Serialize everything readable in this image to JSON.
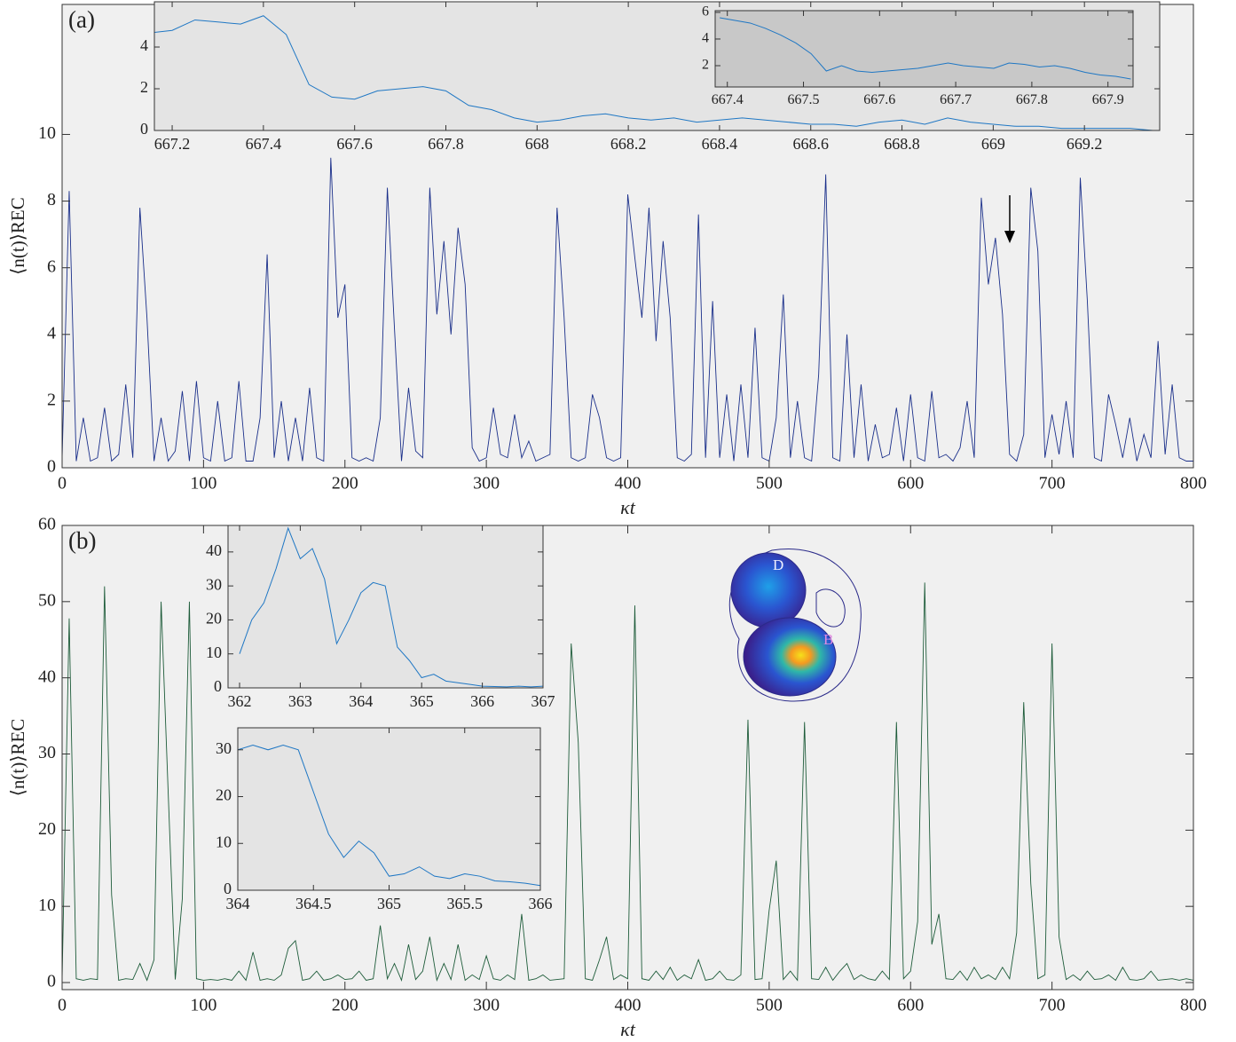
{
  "chart_data": [
    {
      "type": "line",
      "title": "(a)",
      "xlabel": "κt",
      "ylabel": "⟨n(t)⟩REC",
      "background": "#f0f0f0",
      "x": [
        0,
        5,
        10,
        15,
        20,
        25,
        30,
        35,
        40,
        45,
        50,
        55,
        60,
        65,
        70,
        75,
        80,
        85,
        90,
        95,
        100,
        105,
        110,
        115,
        120,
        125,
        130,
        135,
        140,
        145,
        150,
        155,
        160,
        165,
        170,
        175,
        180,
        185,
        190,
        195,
        200,
        205,
        210,
        215,
        220,
        225,
        230,
        235,
        240,
        245,
        250,
        255,
        260,
        265,
        270,
        275,
        280,
        285,
        290,
        295,
        300,
        305,
        310,
        315,
        320,
        325,
        330,
        335,
        340,
        345,
        350,
        355,
        360,
        365,
        370,
        375,
        380,
        385,
        390,
        395,
        400,
        405,
        410,
        415,
        420,
        425,
        430,
        435,
        440,
        445,
        450,
        455,
        460,
        465,
        470,
        475,
        480,
        485,
        490,
        495,
        500,
        505,
        510,
        515,
        520,
        525,
        530,
        535,
        540,
        545,
        550,
        555,
        560,
        565,
        570,
        575,
        580,
        585,
        590,
        595,
        600,
        605,
        610,
        615,
        620,
        625,
        630,
        635,
        640,
        645,
        650,
        655,
        660,
        665,
        670,
        675,
        680,
        685,
        690,
        695,
        700,
        705,
        710,
        715,
        720,
        725,
        730,
        735,
        740,
        745,
        750,
        755,
        760,
        765,
        770,
        775,
        780,
        785,
        790,
        795,
        800
      ],
      "series": [
        {
          "color": "#1a2f8a",
          "values": [
            0.3,
            8.3,
            0.2,
            1.5,
            0.2,
            0.3,
            1.8,
            0.2,
            0.4,
            2.5,
            0.3,
            7.8,
            4.5,
            0.2,
            1.5,
            0.2,
            0.5,
            2.3,
            0.2,
            2.6,
            0.3,
            0.2,
            2.0,
            0.2,
            0.3,
            2.6,
            0.2,
            0.2,
            1.5,
            6.4,
            0.3,
            2.0,
            0.2,
            1.5,
            0.2,
            2.4,
            0.3,
            0.2,
            9.3,
            4.5,
            5.5,
            0.3,
            0.2,
            0.3,
            0.2,
            1.5,
            8.4,
            4.2,
            0.2,
            2.4,
            0.5,
            0.3,
            8.4,
            4.6,
            6.8,
            4.0,
            7.2,
            5.5,
            0.6,
            0.2,
            0.3,
            1.8,
            0.4,
            0.3,
            1.6,
            0.3,
            0.8,
            0.2,
            0.3,
            0.4,
            7.8,
            4.5,
            0.3,
            0.2,
            0.3,
            2.2,
            1.5,
            0.3,
            0.2,
            0.3,
            8.2,
            6.3,
            4.5,
            7.8,
            3.8,
            6.8,
            4.5,
            0.3,
            0.2,
            0.4,
            7.6,
            0.3,
            5.0,
            0.3,
            2.2,
            0.2,
            2.5,
            0.3,
            4.2,
            0.3,
            0.2,
            1.5,
            5.2,
            0.3,
            2.0,
            0.3,
            0.2,
            2.8,
            8.8,
            0.3,
            0.2,
            4.0,
            0.3,
            2.5,
            0.2,
            1.3,
            0.3,
            0.4,
            1.8,
            0.2,
            2.2,
            0.3,
            0.2,
            2.3,
            0.3,
            0.4,
            0.2,
            0.6,
            2.0,
            0.3,
            8.1,
            5.5,
            6.9,
            4.6,
            0.4,
            0.2,
            1.0,
            8.4,
            6.5,
            0.3,
            1.6,
            0.4,
            2.0,
            0.3,
            8.7,
            5.0,
            0.3,
            0.2,
            2.2,
            1.3,
            0.3,
            1.5,
            0.2,
            1.0,
            0.3,
            3.8,
            0.4,
            2.5,
            0.3,
            0.2,
            0.2
          ]
        }
      ],
      "xlim": [
        0,
        800
      ],
      "xticks": [
        0,
        100,
        200,
        300,
        400,
        500,
        600,
        700,
        800
      ],
      "ylim": [
        0,
        13.9
      ],
      "yticks": [
        0,
        2,
        4,
        6,
        8,
        10
      ]
    },
    {
      "type": "line",
      "background": "#e4e4e4",
      "x": [
        667.16,
        667.2,
        667.25,
        667.3,
        667.35,
        667.4,
        667.45,
        667.5,
        667.55,
        667.6,
        667.65,
        667.7,
        667.75,
        667.8,
        667.85,
        667.9,
        667.95,
        668,
        668.05,
        668.1,
        668.15,
        668.2,
        668.25,
        668.3,
        668.35,
        668.4,
        668.45,
        668.5,
        668.55,
        668.6,
        668.65,
        668.7,
        668.75,
        668.8,
        668.85,
        668.9,
        668.95,
        669,
        669.05,
        669.1,
        669.15,
        669.2,
        669.25,
        669.3,
        669.35
      ],
      "series": [
        {
          "color": "#1f77c4",
          "values": [
            4.7,
            4.8,
            5.3,
            5.2,
            5.1,
            5.5,
            4.6,
            2.2,
            1.6,
            1.5,
            1.9,
            2.0,
            2.1,
            1.9,
            1.2,
            1.0,
            0.6,
            0.4,
            0.5,
            0.7,
            0.8,
            0.6,
            0.5,
            0.6,
            0.4,
            0.5,
            0.6,
            0.5,
            0.4,
            0.3,
            0.3,
            0.2,
            0.4,
            0.5,
            0.3,
            0.6,
            0.4,
            0.3,
            0.2,
            0.2,
            0.1,
            0.1,
            0.1,
            0.1,
            0.0
          ]
        }
      ],
      "xlim": [
        667.161,
        669.365
      ],
      "xticks": [
        667.2,
        667.4,
        667.6,
        667.8,
        668,
        668.2,
        668.4,
        668.6,
        668.8,
        669,
        669.2
      ],
      "ylim": [
        0,
        6.17
      ],
      "yticks": [
        0,
        2,
        4
      ]
    },
    {
      "type": "line",
      "background": "#c8c8c8",
      "x": [
        667.39,
        667.41,
        667.43,
        667.45,
        667.47,
        667.49,
        667.51,
        667.53,
        667.55,
        667.57,
        667.59,
        667.61,
        667.63,
        667.65,
        667.67,
        667.69,
        667.71,
        667.73,
        667.75,
        667.77,
        667.79,
        667.81,
        667.83,
        667.85,
        667.87,
        667.89,
        667.91,
        667.93
      ],
      "series": [
        {
          "color": "#1f77c4",
          "values": [
            5.6,
            5.4,
            5.2,
            4.8,
            4.3,
            3.7,
            2.9,
            1.6,
            2.0,
            1.6,
            1.5,
            1.6,
            1.7,
            1.8,
            2.0,
            2.2,
            2.0,
            1.9,
            1.8,
            2.2,
            2.1,
            1.9,
            2.0,
            1.8,
            1.5,
            1.3,
            1.2,
            1.0
          ]
        }
      ],
      "xlim": [
        667.384,
        667.933
      ],
      "xticks": [
        667.4,
        667.5,
        667.6,
        667.7,
        667.8,
        667.9
      ],
      "ylim": [
        0.4,
        6.13
      ],
      "yticks": [
        2,
        4,
        6
      ]
    },
    {
      "type": "line",
      "title": "(b)",
      "xlabel": "κt",
      "ylabel": "⟨n(t)⟩REC",
      "background": "#f0f0f0",
      "x": [
        0,
        5,
        10,
        15,
        20,
        25,
        30,
        35,
        40,
        45,
        50,
        55,
        60,
        65,
        70,
        75,
        80,
        85,
        90,
        95,
        100,
        105,
        110,
        115,
        120,
        125,
        130,
        135,
        140,
        145,
        150,
        155,
        160,
        165,
        170,
        175,
        180,
        185,
        190,
        195,
        200,
        205,
        210,
        215,
        220,
        225,
        230,
        235,
        240,
        245,
        250,
        255,
        260,
        265,
        270,
        275,
        280,
        285,
        290,
        295,
        300,
        305,
        310,
        315,
        320,
        325,
        330,
        335,
        340,
        345,
        350,
        355,
        360,
        365,
        370,
        375,
        380,
        385,
        390,
        395,
        400,
        405,
        410,
        415,
        420,
        425,
        430,
        435,
        440,
        445,
        450,
        455,
        460,
        465,
        470,
        475,
        480,
        485,
        490,
        495,
        500,
        505,
        510,
        515,
        520,
        525,
        530,
        535,
        540,
        545,
        550,
        555,
        560,
        565,
        570,
        575,
        580,
        585,
        590,
        595,
        600,
        605,
        610,
        615,
        620,
        625,
        630,
        635,
        640,
        645,
        650,
        655,
        660,
        665,
        670,
        675,
        680,
        685,
        690,
        695,
        700,
        705,
        710,
        715,
        720,
        725,
        730,
        735,
        740,
        745,
        750,
        755,
        760,
        765,
        770,
        775,
        780,
        785,
        790,
        795,
        800
      ],
      "series": [
        {
          "color": "#1e5c3a",
          "values": [
            0.5,
            47.8,
            0.5,
            0.3,
            0.5,
            0.4,
            52,
            11.5,
            0.3,
            0.5,
            0.4,
            2.5,
            0.3,
            3,
            50,
            25,
            0.4,
            11,
            50,
            0.5,
            0.3,
            0.4,
            0.3,
            0.5,
            0.3,
            1.5,
            0.3,
            4,
            0.3,
            0.5,
            0.3,
            1,
            4.5,
            5.5,
            0.3,
            0.5,
            1.5,
            0.3,
            0.5,
            1,
            0.4,
            0.5,
            1.5,
            0.3,
            0.5,
            7.5,
            0.5,
            2.5,
            0.3,
            5,
            0.4,
            1.5,
            6,
            0.3,
            2.5,
            0.4,
            5,
            0.3,
            1,
            0.4,
            3.5,
            0.5,
            0.3,
            1,
            0.4,
            9,
            0.3,
            0.5,
            1,
            0.3,
            0.4,
            0.5,
            44.5,
            31.5,
            0.5,
            0.3,
            3,
            6,
            0.4,
            1,
            0.5,
            49.5,
            0.5,
            0.3,
            1.5,
            0.4,
            2,
            0.3,
            1,
            0.5,
            3,
            0.3,
            0.5,
            1.5,
            0.4,
            0.3,
            1,
            34.5,
            0.4,
            0.5,
            9.5,
            16,
            0.4,
            1.5,
            0.3,
            34.2,
            0.5,
            0.4,
            2,
            0.3,
            1.5,
            2.5,
            0.4,
            1,
            0.5,
            0.3,
            1.5,
            0.4,
            34.2,
            0.5,
            1.5,
            8,
            52.5,
            5,
            9,
            0.5,
            0.4,
            1.5,
            0.3,
            2,
            0.5,
            1,
            0.4,
            2,
            0.5,
            6.5,
            36.8,
            13,
            0.5,
            1,
            44.5,
            6,
            0.4,
            1,
            0.3,
            1.5,
            0.4,
            0.5,
            1,
            0.3,
            2,
            0.4,
            0.3,
            0.5,
            1.5,
            0.3,
            0.4,
            0.5,
            0.3,
            0.5,
            0.3
          ]
        }
      ],
      "xlim": [
        0,
        800
      ],
      "xticks": [
        0,
        100,
        200,
        300,
        400,
        500,
        600,
        700,
        800
      ],
      "ylim": [
        -0.93,
        60
      ],
      "yticks": [
        0,
        10,
        20,
        30,
        40,
        50,
        60
      ]
    },
    {
      "type": "line",
      "background": "#e4e4e4",
      "x": [
        362,
        362.2,
        362.4,
        362.6,
        362.8,
        363,
        363.2,
        363.4,
        363.6,
        363.8,
        364,
        364.2,
        364.4,
        364.6,
        364.8,
        365,
        365.2,
        365.4,
        365.6,
        365.8,
        366,
        366.2,
        366.4,
        366.6,
        366.8,
        367
      ],
      "series": [
        {
          "color": "#1f77c4",
          "values": [
            10,
            20,
            25,
            35,
            47,
            38,
            41,
            32,
            13,
            20,
            28,
            31,
            30,
            12,
            8,
            3,
            4,
            2,
            1.5,
            1,
            0.5,
            0.4,
            0.3,
            0.5,
            0.3,
            0.5
          ]
        }
      ],
      "xlim": [
        361.81,
        367
      ],
      "xticks": [
        362,
        363,
        364,
        365,
        366,
        367
      ],
      "ylim": [
        0,
        47.8
      ],
      "yticks": [
        0,
        10,
        20,
        30,
        40
      ]
    },
    {
      "type": "line",
      "background": "#e4e4e4",
      "x": [
        364,
        364.1,
        364.2,
        364.3,
        364.4,
        364.5,
        364.6,
        364.7,
        364.8,
        364.9,
        365,
        365.1,
        365.2,
        365.3,
        365.4,
        365.5,
        365.6,
        365.7,
        365.8,
        365.9,
        366
      ],
      "series": [
        {
          "color": "#1f77c4",
          "values": [
            30,
            31,
            30,
            31,
            30,
            21,
            12,
            7,
            10.5,
            8,
            3,
            3.5,
            5,
            3,
            2.5,
            3.5,
            3,
            2,
            1.8,
            1.5,
            1
          ]
        }
      ],
      "xlim": [
        364,
        366
      ],
      "xticks": [
        364,
        364.5,
        365,
        365.5,
        366
      ],
      "ylim": [
        0,
        34.7
      ],
      "yticks": [
        0,
        10,
        20,
        30
      ]
    }
  ],
  "phase_portrait": {
    "labels": [
      "D",
      "B"
    ]
  }
}
